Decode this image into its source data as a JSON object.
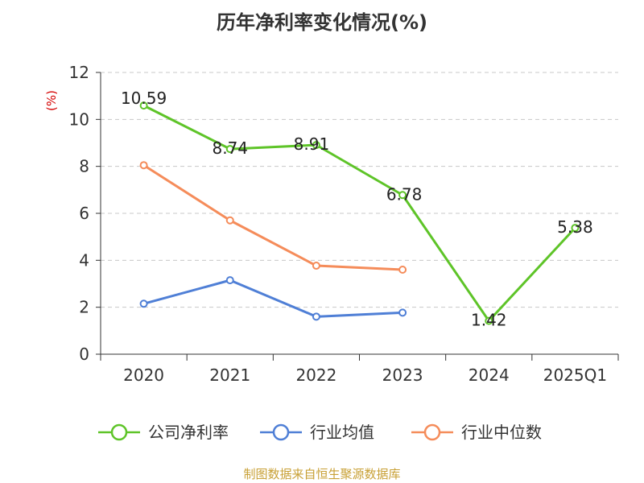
{
  "chart_data": {
    "type": "line",
    "title": "历年净利率变化情况(%)",
    "ylabel": "(%)",
    "xlabel": "",
    "categories": [
      "2020",
      "2021",
      "2022",
      "2023",
      "2024",
      "2025Q1"
    ],
    "ylim": [
      0,
      12
    ],
    "yticks": [
      0,
      2,
      4,
      6,
      8,
      10,
      12
    ],
    "grid": true,
    "legend_position": "bottom",
    "series": [
      {
        "name": "公司净利率",
        "color": "#5ec428",
        "show_labels": true,
        "values": [
          10.59,
          8.74,
          8.91,
          6.78,
          1.42,
          5.38
        ]
      },
      {
        "name": "行业均值",
        "color": "#4f7fd6",
        "show_labels": false,
        "values": [
          2.15,
          3.15,
          1.6,
          1.77,
          null,
          null
        ]
      },
      {
        "name": "行业中位数",
        "color": "#f58c5a",
        "show_labels": false,
        "values": [
          8.05,
          5.7,
          3.77,
          3.6,
          null,
          null
        ]
      }
    ]
  },
  "footer": {
    "source": "制图数据来自恒生聚源数据库"
  }
}
